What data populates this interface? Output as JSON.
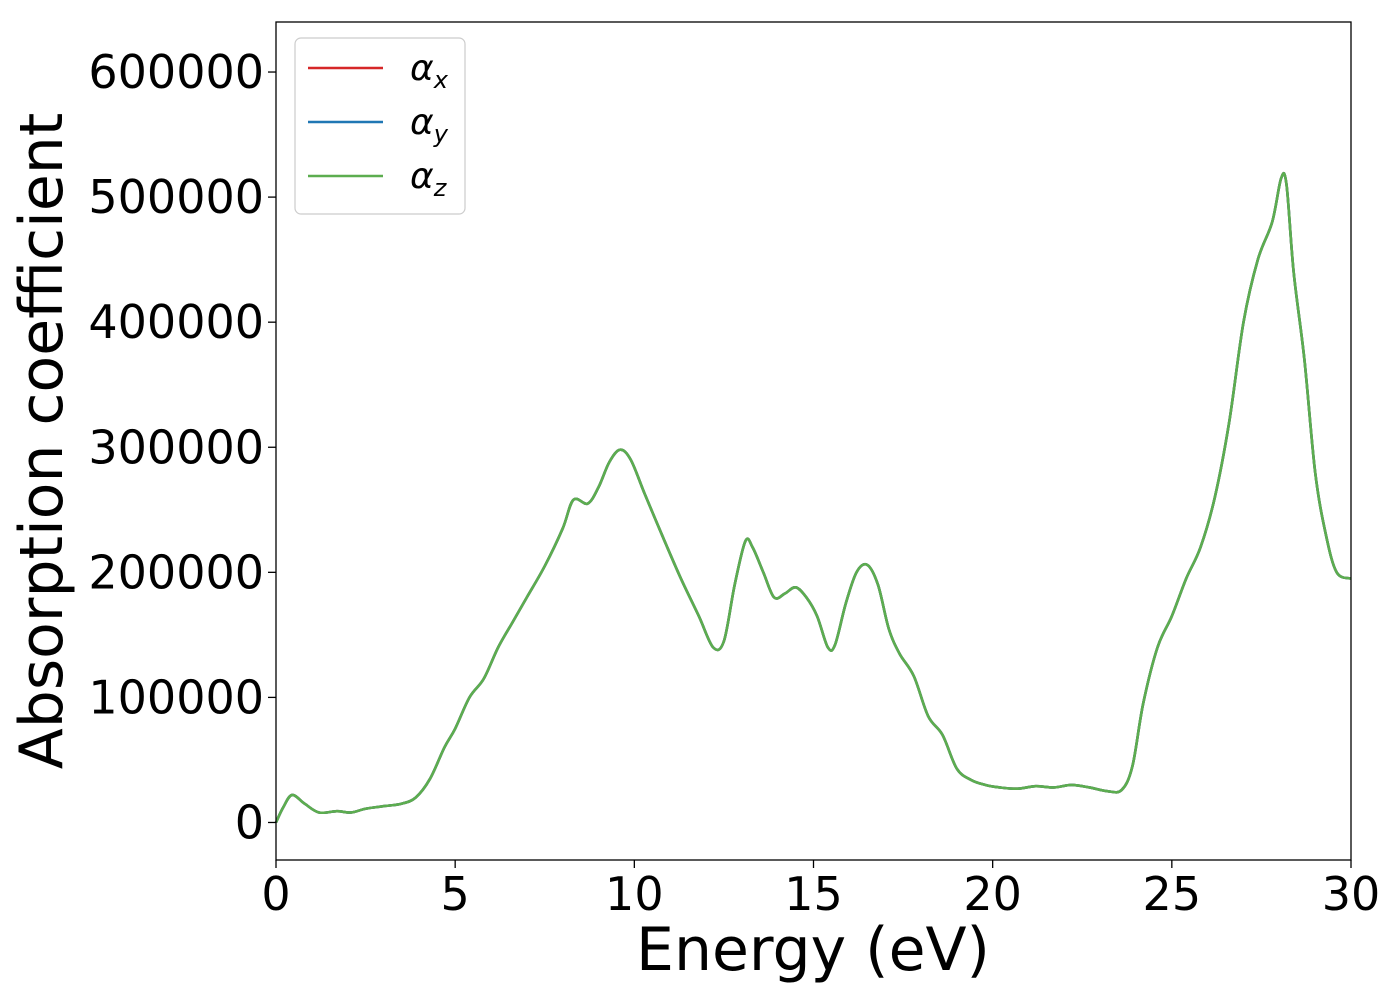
{
  "chart_data": {
    "type": "line",
    "title": "",
    "xlabel": "Energy (eV)",
    "ylabel": "Absorption coefficient",
    "xlim": [
      0,
      30
    ],
    "ylim": [
      -30000,
      640000
    ],
    "xticks": [
      0,
      5,
      10,
      15,
      20,
      25,
      30
    ],
    "yticks": [
      0,
      100000,
      200000,
      300000,
      400000,
      500000,
      600000
    ],
    "xtick_labels": [
      "0",
      "5",
      "10",
      "15",
      "20",
      "25",
      "30"
    ],
    "ytick_labels": [
      "0",
      "100000",
      "200000",
      "300000",
      "400000",
      "500000",
      "600000"
    ],
    "grid": false,
    "legend_position": "top-left",
    "x": [
      0,
      0.2,
      0.45,
      0.8,
      1.2,
      1.7,
      2.1,
      2.5,
      3.0,
      3.5,
      3.9,
      4.3,
      4.7,
      5.0,
      5.4,
      5.8,
      6.2,
      6.6,
      7.0,
      7.5,
      8.0,
      8.3,
      8.7,
      9.0,
      9.3,
      9.6,
      9.9,
      10.3,
      10.8,
      11.3,
      11.8,
      12.2,
      12.5,
      12.8,
      13.1,
      13.3,
      13.6,
      13.9,
      14.2,
      14.5,
      14.8,
      15.1,
      15.4,
      15.6,
      15.9,
      16.2,
      16.5,
      16.8,
      17.1,
      17.4,
      17.8,
      18.2,
      18.6,
      19.0,
      19.4,
      19.8,
      20.2,
      20.7,
      21.2,
      21.7,
      22.2,
      22.7,
      23.2,
      23.6,
      23.9,
      24.2,
      24.6,
      25.0,
      25.4,
      25.8,
      26.2,
      26.6,
      27.0,
      27.4,
      27.8,
      28.05,
      28.2,
      28.4,
      28.7,
      29.0,
      29.3,
      29.6,
      30.0
    ],
    "series": [
      {
        "name": "α_x",
        "label_base": "α",
        "label_sub": "x",
        "color": "#d62728",
        "values": [
          0,
          12000,
          22000,
          15000,
          8000,
          9000,
          8000,
          11000,
          13000,
          15000,
          20000,
          35000,
          60000,
          75000,
          100000,
          115000,
          140000,
          160000,
          180000,
          205000,
          235000,
          258000,
          255000,
          268000,
          288000,
          298000,
          290000,
          262000,
          228000,
          195000,
          165000,
          140000,
          145000,
          190000,
          225000,
          220000,
          200000,
          180000,
          183000,
          188000,
          180000,
          165000,
          140000,
          142000,
          175000,
          200000,
          206000,
          190000,
          155000,
          135000,
          117000,
          85000,
          70000,
          43000,
          34000,
          30000,
          28000,
          27000,
          29000,
          28000,
          30000,
          28000,
          25000,
          26000,
          45000,
          95000,
          140000,
          165000,
          195000,
          220000,
          260000,
          320000,
          400000,
          450000,
          480000,
          515000,
          510000,
          440000,
          370000,
          280000,
          230000,
          200000,
          195000
        ]
      },
      {
        "name": "α_y",
        "label_base": "α",
        "label_sub": "y",
        "color": "#1f77b4",
        "values": [
          0,
          12000,
          22000,
          15000,
          8000,
          9000,
          8000,
          11000,
          13000,
          15000,
          20000,
          35000,
          60000,
          75000,
          100000,
          115000,
          140000,
          160000,
          180000,
          205000,
          235000,
          258000,
          255000,
          268000,
          288000,
          298000,
          290000,
          262000,
          228000,
          195000,
          165000,
          140000,
          145000,
          190000,
          225000,
          220000,
          200000,
          180000,
          183000,
          188000,
          180000,
          165000,
          140000,
          142000,
          175000,
          200000,
          206000,
          190000,
          155000,
          135000,
          117000,
          85000,
          70000,
          43000,
          34000,
          30000,
          28000,
          27000,
          29000,
          28000,
          30000,
          28000,
          25000,
          26000,
          45000,
          95000,
          140000,
          165000,
          195000,
          220000,
          260000,
          320000,
          400000,
          450000,
          480000,
          515000,
          510000,
          440000,
          370000,
          280000,
          230000,
          200000,
          195000
        ]
      },
      {
        "name": "α_z",
        "label_base": "α",
        "label_sub": "z",
        "color": "#5cad4f",
        "values": [
          0,
          12000,
          22000,
          15000,
          8000,
          9000,
          8000,
          11000,
          13000,
          15000,
          20000,
          35000,
          60000,
          75000,
          100000,
          115000,
          140000,
          160000,
          180000,
          205000,
          235000,
          258000,
          255000,
          268000,
          288000,
          298000,
          290000,
          262000,
          228000,
          195000,
          165000,
          140000,
          145000,
          190000,
          225000,
          220000,
          200000,
          180000,
          183000,
          188000,
          180000,
          165000,
          140000,
          142000,
          175000,
          200000,
          206000,
          190000,
          155000,
          135000,
          117000,
          85000,
          70000,
          43000,
          34000,
          30000,
          28000,
          27000,
          29000,
          28000,
          30000,
          28000,
          25000,
          26000,
          45000,
          95000,
          140000,
          165000,
          195000,
          220000,
          260000,
          320000,
          400000,
          450000,
          480000,
          515000,
          510000,
          440000,
          370000,
          280000,
          230000,
          200000,
          195000
        ]
      }
    ]
  }
}
